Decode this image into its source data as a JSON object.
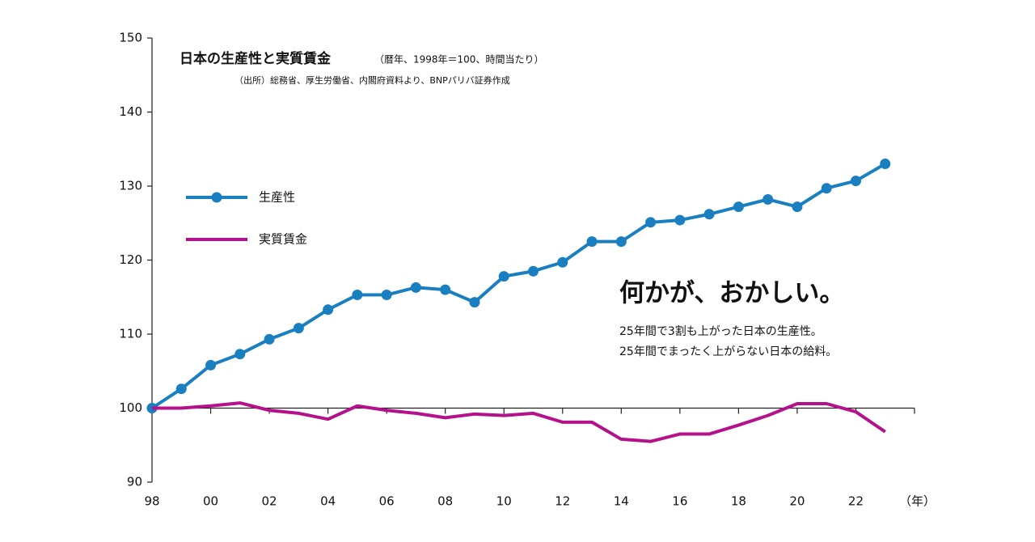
{
  "chart_data": {
    "type": "line",
    "title": "日本の生産性と実質賃金",
    "subtitle": "（暦年、1998年＝100、時間当たり）",
    "source": "（出所）総務省、厚生労働省、内閣府資料より、BNPパリバ証券作成",
    "annotations": [
      "何かが、おかしい。",
      "25年間で3割も上がった日本の生産性。",
      "25年間でまったく上がらない日本の給料。"
    ],
    "x_label": "（年）",
    "x": [
      1998,
      1999,
      2000,
      2001,
      2002,
      2003,
      2004,
      2005,
      2006,
      2007,
      2008,
      2009,
      2010,
      2011,
      2012,
      2013,
      2014,
      2015,
      2016,
      2017,
      2018,
      2019,
      2020,
      2021,
      2022,
      2023
    ],
    "series": [
      {
        "name": "生産性",
        "color": "#1a7fc1",
        "marker": "circle",
        "values": [
          100,
          102.6,
          105.8,
          107.3,
          109.3,
          110.8,
          113.3,
          115.3,
          115.3,
          116.3,
          116.0,
          114.3,
          117.8,
          118.5,
          119.7,
          122.5,
          122.5,
          125.1,
          125.4,
          126.2,
          127.2,
          128.2,
          127.2,
          129.7,
          130.7,
          133.0
        ]
      },
      {
        "name": "実質賃金",
        "color": "#b5118b",
        "marker": "none",
        "values": [
          100,
          100,
          100.3,
          100.7,
          99.7,
          99.3,
          98.5,
          100.3,
          99.7,
          99.3,
          98.7,
          99.2,
          99.0,
          99.3,
          98.1,
          98.1,
          95.8,
          95.5,
          96.5,
          96.5,
          97.7,
          99.0,
          100.6,
          100.6,
          99.5,
          96.8
        ]
      }
    ],
    "xlim": [
      1998,
      2024
    ],
    "xticks": [
      {
        "value": 1998,
        "label": "98"
      },
      {
        "value": 2000,
        "label": "00"
      },
      {
        "value": 2002,
        "label": "02"
      },
      {
        "value": 2004,
        "label": "04"
      },
      {
        "value": 2006,
        "label": "06"
      },
      {
        "value": 2008,
        "label": "08"
      },
      {
        "value": 2010,
        "label": "10"
      },
      {
        "value": 2012,
        "label": "12"
      },
      {
        "value": 2014,
        "label": "14"
      },
      {
        "value": 2016,
        "label": "16"
      },
      {
        "value": 2018,
        "label": "18"
      },
      {
        "value": 2020,
        "label": "20"
      },
      {
        "value": 2022,
        "label": "22"
      }
    ],
    "x_axis_crosses": 100,
    "ylim": [
      90,
      150
    ],
    "yticks": [
      90,
      100,
      110,
      120,
      130,
      140,
      150
    ],
    "grid": false
  }
}
